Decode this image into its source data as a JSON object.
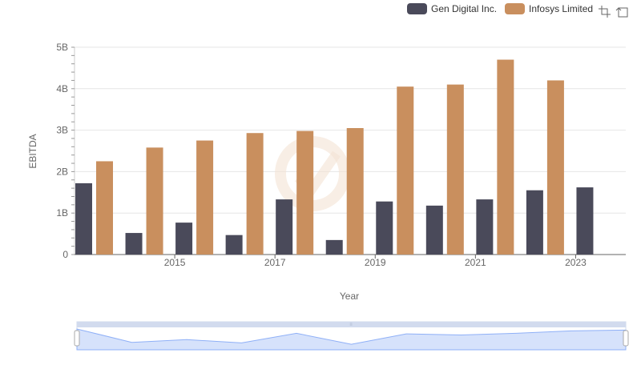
{
  "chart_data": {
    "type": "bar",
    "categories": [
      "2014",
      "2015",
      "2016",
      "2017",
      "2018",
      "2019",
      "2020",
      "2021",
      "2022",
      "2023",
      "2024"
    ],
    "x_tick_labels": [
      "2015",
      "2017",
      "2019",
      "2021",
      "2023"
    ],
    "series": [
      {
        "name": "Gen Digital Inc.",
        "color": "#4a4a5a",
        "values": [
          1.72,
          0.52,
          0.77,
          0.47,
          1.33,
          0.35,
          1.28,
          1.18,
          1.33,
          1.55,
          1.62
        ]
      },
      {
        "name": "Infosys Limited",
        "color": "#c98f5e",
        "values": [
          2.25,
          2.58,
          2.75,
          2.93,
          2.98,
          3.05,
          4.05,
          4.1,
          4.7,
          4.2,
          null
        ]
      }
    ],
    "ylabel": "EBITDA",
    "xlabel": "Year",
    "ylim": [
      0,
      5
    ],
    "y_ticks": [
      {
        "v": 0,
        "label": "0"
      },
      {
        "v": 1,
        "label": "1B"
      },
      {
        "v": 2,
        "label": "2B"
      },
      {
        "v": 3,
        "label": "3B"
      },
      {
        "v": 4,
        "label": "4B"
      },
      {
        "v": 5,
        "label": "5B"
      }
    ],
    "legend_position": "top-right",
    "grid": true
  },
  "colors": {
    "series1": "#4a4a5a",
    "series2": "#c98f5e",
    "zoom_fill": "#d6e2fb",
    "zoom_line": "#8fb0f7"
  },
  "toolbox": {
    "zoom_icon": "zoom-icon",
    "restore_icon": "restore-icon"
  }
}
